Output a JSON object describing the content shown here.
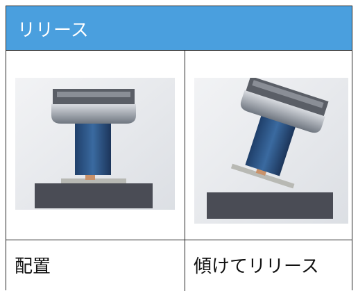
{
  "header": {
    "title": "リリース"
  },
  "table": {
    "captions": [
      "配置",
      "傾けてリリース"
    ]
  }
}
